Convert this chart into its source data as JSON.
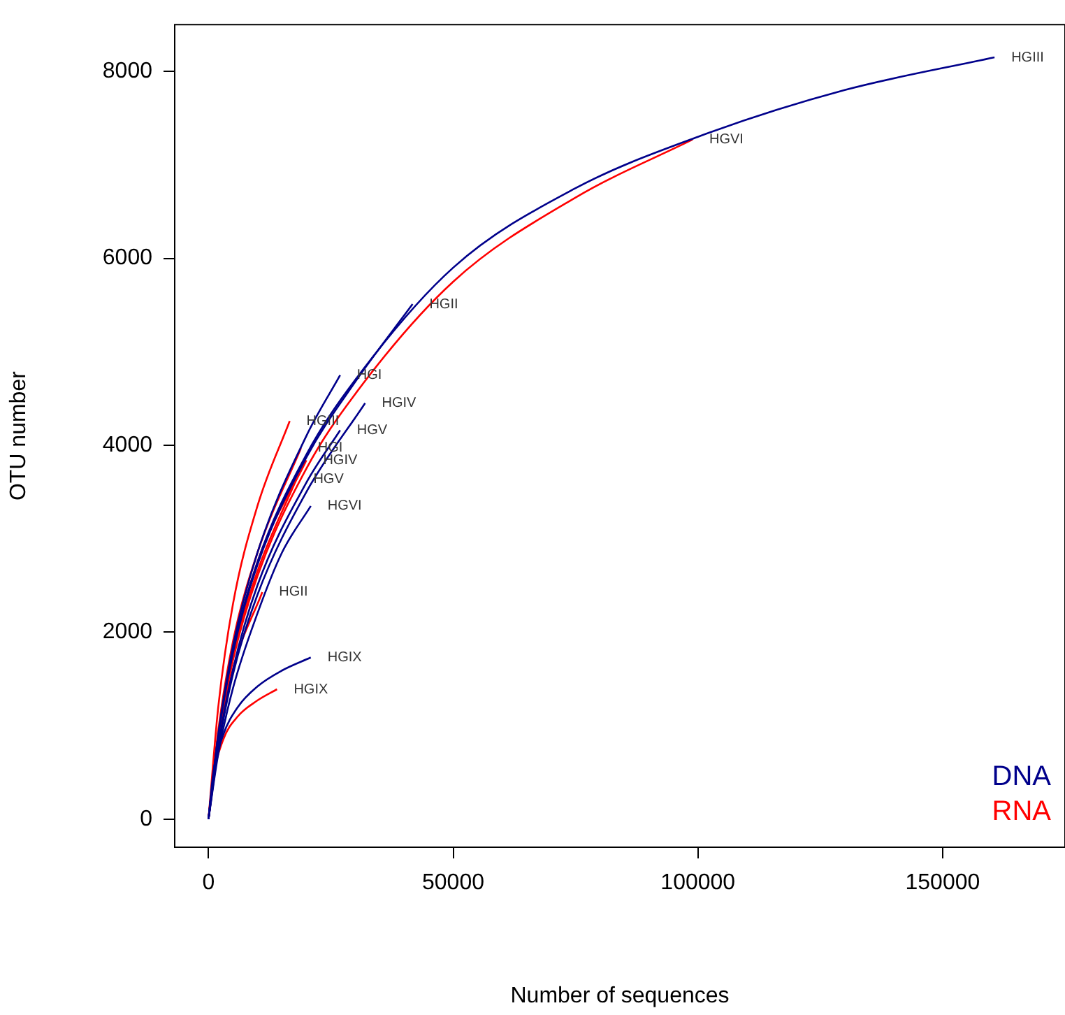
{
  "chart_data": {
    "type": "line",
    "xlabel": "Number of sequences",
    "ylabel": "OTU number",
    "xlim": [
      -6900,
      175000
    ],
    "xticks": [
      0,
      50000,
      100000,
      150000
    ],
    "ylim": [
      -300,
      8500
    ],
    "yticks": [
      0,
      2000,
      4000,
      6000,
      8000
    ],
    "grid": false,
    "legend": false,
    "marker": "none",
    "line_style": "solid",
    "annotations": [
      "DNA",
      "RNA"
    ],
    "series": [
      {
        "name": "HGIII",
        "color": "#00008b",
        "x": [
          0,
          2000,
          5000,
          10000,
          20000,
          30000,
          50000,
          75000,
          100000,
          130000,
          160600
        ],
        "values": [
          0,
          900,
          1800,
          2750,
          3900,
          4700,
          5900,
          6750,
          7300,
          7800,
          8150
        ]
      },
      {
        "name": "HGII",
        "color": "#00008b",
        "x": [
          0,
          2000,
          5000,
          10000,
          20000,
          30000,
          41700
        ],
        "values": [
          0,
          880,
          1780,
          2720,
          3870,
          4680,
          5510
        ]
      },
      {
        "name": "HGI",
        "color": "#00008b",
        "x": [
          0,
          2000,
          5000,
          10000,
          20000,
          26900
        ],
        "values": [
          0,
          900,
          1850,
          2850,
          4100,
          4750
        ]
      },
      {
        "name": "HGIV",
        "color": "#00008b",
        "x": [
          0,
          2000,
          5000,
          10000,
          20000,
          32000
        ],
        "values": [
          0,
          750,
          1550,
          2400,
          3500,
          4450
        ]
      },
      {
        "name": "HGV",
        "color": "#00008b",
        "x": [
          0,
          2000,
          5000,
          10000,
          20000,
          26900
        ],
        "values": [
          0,
          780,
          1600,
          2500,
          3600,
          4160
        ]
      },
      {
        "name": "HGVI",
        "color": "#00008b",
        "x": [
          0,
          2000,
          5000,
          10000,
          15000,
          20900
        ],
        "values": [
          0,
          700,
          1400,
          2200,
          2850,
          3350
        ]
      },
      {
        "name": "HGIX",
        "color": "#00008b",
        "x": [
          0,
          1000,
          3000,
          6000,
          10000,
          15000,
          20900
        ],
        "values": [
          0,
          500,
          900,
          1200,
          1420,
          1590,
          1730
        ]
      },
      {
        "name": "HGVI",
        "color": "#ff0000",
        "x": [
          0,
          2000,
          5000,
          10000,
          20000,
          30000,
          50000,
          75000,
          98900
        ],
        "values": [
          0,
          850,
          1700,
          2600,
          3750,
          4550,
          5750,
          6650,
          7270
        ]
      },
      {
        "name": "HGIII",
        "color": "#ff0000",
        "x": [
          0,
          2000,
          5000,
          10000,
          16600
        ],
        "values": [
          0,
          1200,
          2300,
          3350,
          4260
        ]
      },
      {
        "name": "HGI",
        "color": "#ff0000",
        "x": [
          0,
          2000,
          5000,
          10000,
          18900
        ],
        "values": [
          0,
          950,
          1900,
          2850,
          3970
        ]
      },
      {
        "name": "HGIV",
        "color": "#ff0000",
        "x": [
          0,
          2000,
          5000,
          10000,
          20000
        ],
        "values": [
          0,
          900,
          1800,
          2750,
          3840
        ]
      },
      {
        "name": "HGV",
        "color": "#ff0000",
        "x": [
          0,
          2000,
          5000,
          10000,
          18000
        ],
        "values": [
          0,
          880,
          1750,
          2650,
          3640
        ]
      },
      {
        "name": "HGII",
        "color": "#ff0000",
        "x": [
          0,
          2000,
          5000,
          11000
        ],
        "values": [
          0,
          800,
          1600,
          2430
        ]
      },
      {
        "name": "HGIX",
        "color": "#ff0000",
        "x": [
          0,
          1000,
          3000,
          6000,
          10000,
          14000
        ],
        "values": [
          0,
          450,
          850,
          1100,
          1270,
          1390
        ]
      }
    ]
  }
}
